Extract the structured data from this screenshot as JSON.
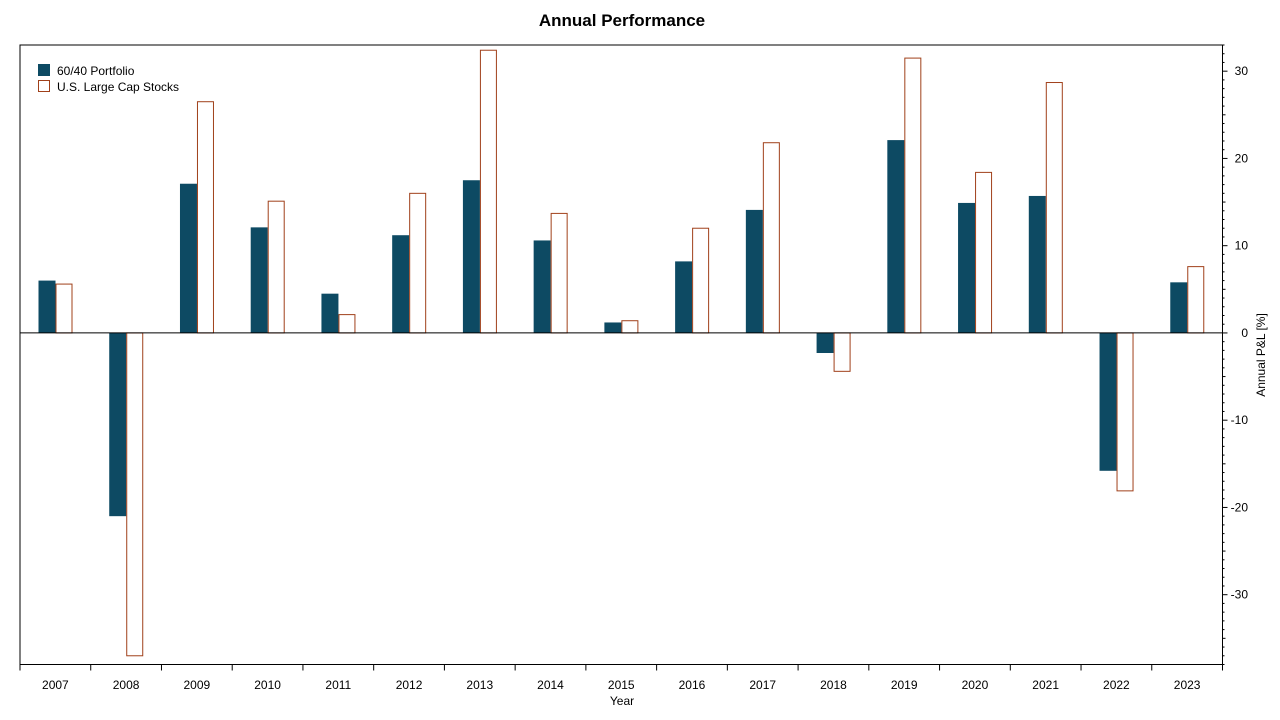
{
  "chart_data": {
    "type": "bar",
    "title": "Annual Performance",
    "xlabel": "Year",
    "ylabel": "Annual P&L [%]",
    "ylim": [
      -38,
      33
    ],
    "yticks": [
      -30,
      -20,
      -10,
      0,
      10,
      20,
      30
    ],
    "grid": false,
    "legend_position": "top-left",
    "categories": [
      "2007",
      "2008",
      "2009",
      "2010",
      "2011",
      "2012",
      "2013",
      "2014",
      "2015",
      "2016",
      "2017",
      "2018",
      "2019",
      "2020",
      "2021",
      "2022",
      "2023"
    ],
    "series": [
      {
        "name": "60/40 Portfolio",
        "color": "#0d4a63",
        "style": "filled",
        "values": [
          6.0,
          -21.0,
          17.1,
          12.1,
          4.5,
          11.2,
          17.5,
          10.6,
          1.2,
          8.2,
          14.1,
          -2.3,
          22.1,
          14.9,
          15.7,
          -15.8,
          5.8
        ]
      },
      {
        "name": "U.S. Large Cap Stocks",
        "color": "#a0401a",
        "style": "outline",
        "values": [
          5.6,
          -37.0,
          26.5,
          15.1,
          2.1,
          16.0,
          32.4,
          13.7,
          1.4,
          12.0,
          21.8,
          -4.4,
          31.5,
          18.4,
          28.7,
          -18.1,
          7.6
        ]
      }
    ]
  }
}
